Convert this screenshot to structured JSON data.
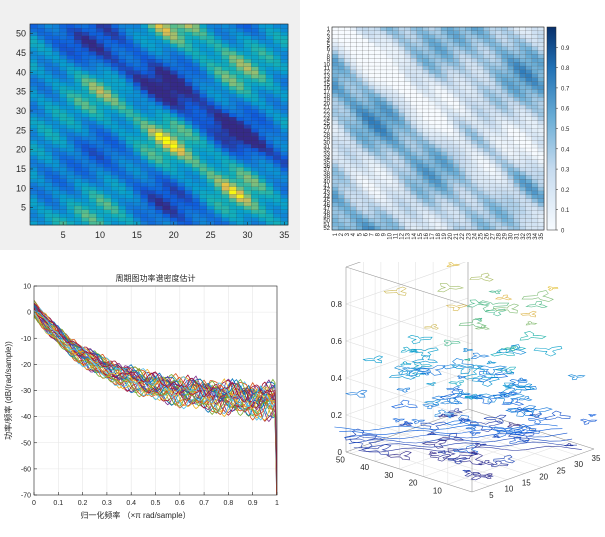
{
  "chart_data": [
    {
      "type": "heatmap",
      "title": "",
      "colormap": "parula",
      "xlim": [
        0.5,
        35.5
      ],
      "ylim": [
        0.5,
        52.5
      ],
      "x_ticks": [
        "5",
        "10",
        "15",
        "20",
        "25",
        "30",
        "35"
      ],
      "y_ticks": [
        "5",
        "10",
        "15",
        "20",
        "25",
        "30",
        "35",
        "40",
        "45",
        "50"
      ],
      "n_cols": 35,
      "n_rows": 52
    },
    {
      "type": "heatmap",
      "title": "",
      "colormap": "blues",
      "n_cols": 35,
      "n_rows": 52,
      "colorbar_range": [
        0,
        1
      ],
      "colorbar_ticks": [
        "0",
        "0.1",
        "0.2",
        "0.3",
        "0.4",
        "0.5",
        "0.6",
        "0.7",
        "0.8",
        "0.9"
      ],
      "y_labels": [
        "1",
        "2",
        "3",
        "4",
        "5",
        "6",
        "7",
        "8",
        "9",
        "10",
        "11",
        "12",
        "13",
        "14",
        "15",
        "16",
        "17",
        "18",
        "19",
        "20",
        "21",
        "22",
        "23",
        "24",
        "25",
        "26",
        "27",
        "28",
        "29",
        "30",
        "31",
        "32",
        "33",
        "34",
        "35",
        "36",
        "37",
        "38",
        "39",
        "40",
        "41",
        "42",
        "43",
        "44",
        "45",
        "46",
        "47",
        "48",
        "49",
        "50",
        "51",
        "52"
      ],
      "x_labels": [
        "1",
        "2",
        "3",
        "4",
        "5",
        "6",
        "7",
        "8",
        "9",
        "10",
        "11",
        "12",
        "13",
        "14",
        "15",
        "16",
        "17",
        "18",
        "19",
        "20",
        "21",
        "22",
        "23",
        "24",
        "25",
        "26",
        "27",
        "28",
        "29",
        "30",
        "31",
        "32",
        "33",
        "34",
        "35"
      ]
    },
    {
      "type": "line",
      "title": "周期图功率谱密度估计",
      "xlabel": "归一化频率 （×π rad/sample）",
      "ylabel": "功率/频率 (dB/(rad/sample))",
      "xlim": [
        0,
        1
      ],
      "ylim": [
        -70,
        10
      ],
      "x_ticks": [
        "0",
        "0.1",
        "0.2",
        "0.3",
        "0.4",
        "0.5",
        "0.6",
        "0.7",
        "0.8",
        "0.9",
        "1"
      ],
      "y_ticks": [
        "10",
        "0",
        "-10",
        "-20",
        "-30",
        "-40",
        "-50",
        "-60",
        "-70"
      ],
      "grid": true,
      "n_series": 35,
      "envelope": {
        "start_db": 3,
        "decay": 3.2,
        "floor_db": -32
      },
      "series_colors": [
        "#0072BD",
        "#D95319",
        "#EDB120",
        "#7E2F8E",
        "#77AC30",
        "#4DBEEE",
        "#A2142F"
      ]
    },
    {
      "type": "line",
      "subtype": "contour3",
      "title": "",
      "xlim": [
        0,
        35
      ],
      "ylim": [
        0,
        52
      ],
      "zlim": [
        0,
        1
      ],
      "x_ticks": [
        "5",
        "10",
        "15",
        "20",
        "25",
        "30",
        "35"
      ],
      "y_ticks": [
        "10",
        "20",
        "30",
        "40",
        "50"
      ],
      "z_ticks": [
        "0",
        "0.2",
        "0.4",
        "0.6",
        "0.8"
      ],
      "grid": true
    }
  ]
}
